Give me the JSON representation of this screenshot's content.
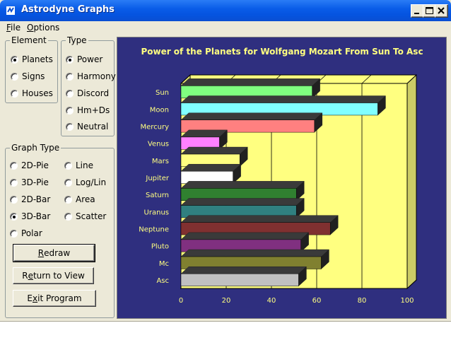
{
  "window": {
    "title": "Astrodyne Graphs",
    "title_color": "#ffffff",
    "titlebar_color": "#0a5de8"
  },
  "menu": {
    "items": [
      {
        "label": "File",
        "mnemonic": "F",
        "rest": "ile"
      },
      {
        "label": "Options",
        "mnemonic": "O",
        "rest": "ptions"
      }
    ]
  },
  "element_group": {
    "title": "Element",
    "options": [
      {
        "label": "Planets",
        "checked": true
      },
      {
        "label": "Signs",
        "checked": false
      },
      {
        "label": "Houses",
        "checked": false
      }
    ]
  },
  "type_group": {
    "title": "Type",
    "options": [
      {
        "label": "Power",
        "checked": true
      },
      {
        "label": "Harmony",
        "checked": false
      },
      {
        "label": "Discord",
        "checked": false
      },
      {
        "label": "Hm+Ds",
        "checked": false
      },
      {
        "label": "Neutral",
        "checked": false
      }
    ]
  },
  "graph_type_group": {
    "title": "Graph Type",
    "options": [
      {
        "label": "2D-Pie",
        "checked": false
      },
      {
        "label": "Line",
        "checked": false
      },
      {
        "label": "3D-Pie",
        "checked": false
      },
      {
        "label": "Log/Lin",
        "checked": false
      },
      {
        "label": "2D-Bar",
        "checked": false
      },
      {
        "label": "Area",
        "checked": false
      },
      {
        "label": "3D-Bar",
        "checked": true
      },
      {
        "label": "Scatter",
        "checked": false
      },
      {
        "label": "Polar",
        "checked": false
      }
    ]
  },
  "buttons": {
    "redraw": {
      "mnemonic": "R",
      "rest": "edraw"
    },
    "return_to_view": {
      "pre": "R",
      "mnemonic": "e",
      "rest": "turn to View"
    },
    "exit_program": {
      "pre": "E",
      "mnemonic": "x",
      "rest": "it Program"
    }
  },
  "chart_data": {
    "type": "bar",
    "orientation": "horizontal",
    "style": "3d",
    "title": "Power of the Planets for Wolfgang Mozart From Sun To Asc",
    "categories": [
      "Sun",
      "Moon",
      "Mercury",
      "Venus",
      "Mars",
      "Jupiter",
      "Saturn",
      "Uranus",
      "Neptune",
      "Pluto",
      "Mc",
      "Asc"
    ],
    "values": [
      58,
      87,
      59,
      17,
      26,
      23,
      51,
      51,
      66,
      53,
      62,
      52
    ],
    "colors": [
      "#80ff80",
      "#80ffff",
      "#ff8080",
      "#ff80ff",
      "#ffff80",
      "#ffffff",
      "#308030",
      "#308080",
      "#803030",
      "#803080",
      "#808030",
      "#c0c0c0"
    ],
    "xlim": [
      0,
      100
    ],
    "xticks": [
      0,
      20,
      40,
      60,
      80,
      100
    ],
    "grid": true,
    "background": "#2f2f7f",
    "plot_background": "#ffff80",
    "title_color": "#ffff80",
    "label_color": "#ffff80"
  }
}
